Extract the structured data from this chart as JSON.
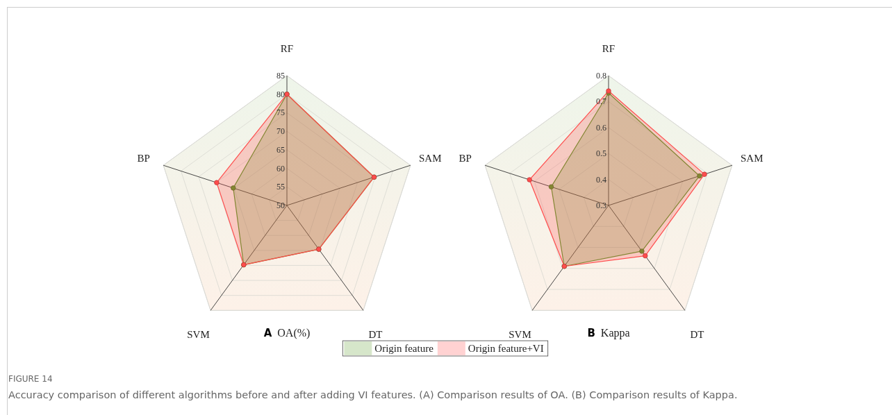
{
  "chart_data": [
    {
      "type": "radar",
      "title": "A",
      "subtitle": "OA(%)",
      "categories": [
        "RF",
        "SAM",
        "DT",
        "SVM",
        "BP"
      ],
      "ylim": [
        50,
        85
      ],
      "yticks": [
        50,
        55,
        60,
        65,
        70,
        75,
        80,
        85
      ],
      "grid": true,
      "marker": "circle",
      "legend": "bottom",
      "annotations": [
        "FIGURE 14",
        "Accuracy comparison of different algorithms before and after adding VI features. (A) Comparison results of OA. (B) Comparison results of Kappa."
      ],
      "series": [
        {
          "name": "Origin feature",
          "color": "#5a9a2a",
          "values": [
            80,
            74.7,
            64.6,
            69.8,
            65.2
          ]
        },
        {
          "name": "Origin feature+VI",
          "color": "#ff4d4d",
          "values": [
            80,
            74.7,
            64.6,
            69.8,
            69.9
          ]
        }
      ]
    },
    {
      "type": "radar",
      "title": "B",
      "subtitle": "Kappa",
      "categories": [
        "RF",
        "SAM",
        "DT",
        "SVM",
        "BP"
      ],
      "ylim": [
        0.3,
        0.8
      ],
      "yticks": [
        0.3,
        0.4,
        0.5,
        0.6,
        0.7,
        0.8
      ],
      "grid": true,
      "marker": "circle",
      "series": [
        {
          "color": "#5a9a2a",
          "values": [
            0.733,
            0.668,
            0.518,
            0.59,
            0.532
          ]
        },
        {
          "color": "#ff4d4d",
          "values": [
            0.741,
            0.688,
            0.54,
            0.59,
            0.62
          ]
        }
      ]
    }
  ]
}
